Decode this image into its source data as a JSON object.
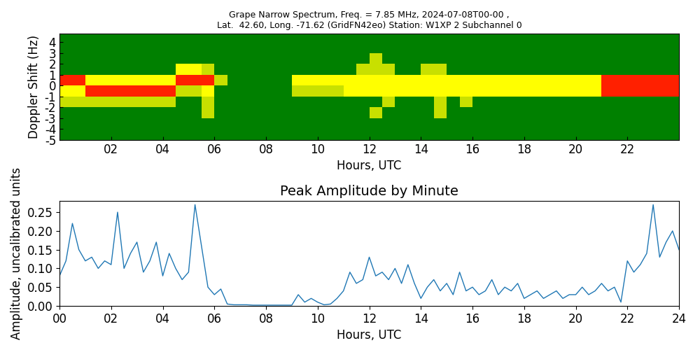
{
  "chart_data": [
    {
      "type": "heatmap",
      "title": "Grape Narrow Spectrum, Freq. = 7.85 MHz, 2024-07-08T00-00 ,\nLat.  42.60, Long. -71.62 (GridFN42eo) Station: W1XP 2 Subchannel 0",
      "x_label": "Hours, UTC",
      "y_label": "Doppler Shift (Hz)",
      "x_edges": [
        0,
        0.5,
        1,
        1.5,
        2,
        2.5,
        3,
        3.5,
        4,
        4.5,
        5,
        5.5,
        6,
        6.5,
        7,
        7.5,
        8,
        8.5,
        9,
        9.5,
        10,
        10.5,
        11,
        11.5,
        12,
        12.5,
        13,
        13.5,
        14,
        14.5,
        15,
        15.5,
        16,
        16.5,
        17,
        17.5,
        18,
        18.5,
        19,
        19.5,
        20,
        20.5,
        21,
        21.5,
        22,
        22.5,
        23,
        23.5,
        24
      ],
      "y_edges": [
        -5,
        -4,
        -3,
        -2,
        -1,
        0,
        1,
        2,
        3,
        4,
        5
      ],
      "cells": [
        [
          0,
          0,
          0,
          0,
          0,
          0,
          0,
          0,
          0,
          0,
          0,
          0,
          0,
          0,
          0,
          0,
          0,
          0,
          0,
          0,
          0,
          0,
          0,
          0,
          0,
          0,
          0,
          0,
          0,
          0,
          0,
          0,
          0,
          0,
          0,
          0,
          0,
          0,
          0,
          0,
          0,
          0,
          0,
          0,
          0,
          0,
          0,
          0
        ],
        [
          0,
          0,
          0,
          0,
          0,
          0,
          0,
          0,
          0,
          0,
          0,
          0,
          0,
          0,
          0,
          0,
          0,
          0,
          0,
          0,
          0,
          0,
          0,
          0,
          0,
          0,
          0,
          0,
          0,
          0,
          0,
          0,
          0,
          0,
          0,
          0,
          0,
          0,
          0,
          0,
          0,
          0,
          0,
          0,
          0,
          0,
          0,
          0
        ],
        [
          0,
          0,
          0,
          0,
          0,
          0,
          0,
          0,
          0,
          0,
          0,
          1,
          0,
          0,
          0,
          0,
          0,
          0,
          0,
          0,
          0,
          0,
          0,
          0,
          1,
          0,
          0,
          0,
          0,
          1,
          0,
          0,
          0,
          0,
          0,
          0,
          0,
          0,
          0,
          0,
          0,
          0,
          0,
          0,
          0,
          0,
          0,
          0
        ],
        [
          1,
          1,
          1,
          1,
          1,
          1,
          1,
          1,
          1,
          0,
          0,
          1,
          0,
          0,
          0,
          0,
          0,
          0,
          0,
          0,
          0,
          0,
          0,
          0,
          0,
          1,
          0,
          0,
          0,
          1,
          0,
          1,
          0,
          0,
          0,
          0,
          0,
          0,
          0,
          0,
          0,
          0,
          0,
          0,
          0,
          0,
          0,
          0
        ],
        [
          2,
          2,
          3,
          3,
          3,
          3,
          3,
          3,
          3,
          1,
          1,
          2,
          0,
          0,
          0,
          0,
          0,
          0,
          1,
          1,
          1,
          1,
          2,
          2,
          2,
          2,
          2,
          2,
          2,
          2,
          2,
          2,
          2,
          2,
          2,
          2,
          2,
          2,
          2,
          2,
          2,
          2,
          3,
          3,
          3,
          3,
          3,
          3
        ],
        [
          3,
          3,
          2,
          2,
          2,
          2,
          2,
          2,
          2,
          3,
          3,
          3,
          1,
          0,
          0,
          0,
          0,
          0,
          2,
          2,
          2,
          2,
          2,
          2,
          2,
          2,
          2,
          2,
          2,
          2,
          2,
          2,
          2,
          2,
          2,
          2,
          2,
          2,
          2,
          2,
          2,
          2,
          3,
          3,
          3,
          3,
          3,
          3
        ],
        [
          0,
          0,
          0,
          0,
          0,
          0,
          0,
          0,
          0,
          2,
          2,
          1,
          0,
          0,
          0,
          0,
          0,
          0,
          0,
          0,
          0,
          0,
          0,
          1,
          1,
          1,
          0,
          0,
          1,
          1,
          0,
          0,
          0,
          0,
          0,
          0,
          0,
          0,
          0,
          0,
          0,
          0,
          0,
          0,
          0,
          0,
          0,
          0
        ],
        [
          0,
          0,
          0,
          0,
          0,
          0,
          0,
          0,
          0,
          0,
          0,
          0,
          0,
          0,
          0,
          0,
          0,
          0,
          0,
          0,
          0,
          0,
          0,
          0,
          1,
          0,
          0,
          0,
          0,
          0,
          0,
          0,
          0,
          0,
          0,
          0,
          0,
          0,
          0,
          0,
          0,
          0,
          0,
          0,
          0,
          0,
          0,
          0
        ],
        [
          0,
          0,
          0,
          0,
          0,
          0,
          0,
          0,
          0,
          0,
          0,
          0,
          0,
          0,
          0,
          0,
          0,
          0,
          0,
          0,
          0,
          0,
          0,
          0,
          0,
          0,
          0,
          0,
          0,
          0,
          0,
          0,
          0,
          0,
          0,
          0,
          0,
          0,
          0,
          0,
          0,
          0,
          0,
          0,
          0,
          0,
          0,
          0
        ],
        [
          0,
          0,
          0,
          0,
          0,
          0,
          0,
          0,
          0,
          0,
          0,
          0,
          0,
          0,
          0,
          0,
          0,
          0,
          0,
          0,
          0,
          0,
          0,
          0,
          0,
          0,
          0,
          0,
          0,
          0,
          0,
          0,
          0,
          0,
          0,
          0,
          0,
          0,
          0,
          0,
          0,
          0,
          0,
          0,
          0,
          0,
          0,
          0
        ]
      ],
      "xlim": [
        0,
        24
      ],
      "xticks": [
        {
          "value": 2,
          "label": "02"
        },
        {
          "value": 4,
          "label": "04"
        },
        {
          "value": 6,
          "label": "06"
        },
        {
          "value": 8,
          "label": "08"
        },
        10,
        12,
        14,
        16,
        18,
        20,
        22
      ],
      "ylim": [
        -5,
        4.8
      ],
      "yticks": [
        -5,
        -4,
        -3,
        -2,
        -1,
        0,
        1,
        2,
        3,
        4
      ]
    },
    {
      "type": "line",
      "title": "Peak Amplitude by Minute",
      "x_label": "Hours, UTC",
      "y_label": "Amplitude, uncalibrated units",
      "color": "#1f77b4",
      "x": [
        0,
        0.25,
        0.5,
        0.75,
        1,
        1.25,
        1.5,
        1.75,
        2,
        2.25,
        2.5,
        2.75,
        3,
        3.25,
        3.5,
        3.75,
        4,
        4.25,
        4.5,
        4.75,
        5,
        5.25,
        5.5,
        5.75,
        6,
        6.25,
        6.5,
        6.75,
        7,
        7.25,
        7.5,
        7.75,
        8,
        8.25,
        8.5,
        8.75,
        9,
        9.25,
        9.5,
        9.75,
        10,
        10.25,
        10.5,
        10.75,
        11,
        11.25,
        11.5,
        11.75,
        12,
        12.25,
        12.5,
        12.75,
        13,
        13.25,
        13.5,
        13.75,
        14,
        14.25,
        14.5,
        14.75,
        15,
        15.25,
        15.5,
        15.75,
        16,
        16.25,
        16.5,
        16.75,
        17,
        17.25,
        17.5,
        17.75,
        18,
        18.25,
        18.5,
        18.75,
        19,
        19.25,
        19.5,
        19.75,
        20,
        20.25,
        20.5,
        20.75,
        21,
        21.25,
        21.5,
        21.75,
        22,
        22.25,
        22.5,
        22.75,
        23,
        23.25,
        23.5,
        23.75,
        24
      ],
      "values": [
        0.08,
        0.12,
        0.22,
        0.15,
        0.12,
        0.13,
        0.1,
        0.12,
        0.11,
        0.25,
        0.1,
        0.14,
        0.17,
        0.09,
        0.12,
        0.17,
        0.08,
        0.14,
        0.1,
        0.07,
        0.09,
        0.27,
        0.16,
        0.05,
        0.03,
        0.045,
        0.005,
        0.003,
        0.003,
        0.003,
        0.002,
        0.002,
        0.002,
        0.002,
        0.002,
        0.002,
        0.002,
        0.03,
        0.01,
        0.02,
        0.01,
        0.003,
        0.005,
        0.02,
        0.04,
        0.09,
        0.06,
        0.07,
        0.13,
        0.08,
        0.09,
        0.07,
        0.1,
        0.06,
        0.11,
        0.06,
        0.02,
        0.05,
        0.07,
        0.04,
        0.06,
        0.03,
        0.09,
        0.04,
        0.05,
        0.03,
        0.04,
        0.07,
        0.03,
        0.05,
        0.04,
        0.06,
        0.02,
        0.03,
        0.04,
        0.02,
        0.03,
        0.04,
        0.02,
        0.03,
        0.03,
        0.05,
        0.03,
        0.04,
        0.06,
        0.04,
        0.05,
        0.01,
        0.12,
        0.09,
        0.11,
        0.14,
        0.27,
        0.13,
        0.17,
        0.2,
        0.15
      ],
      "xlim": [
        0,
        24
      ],
      "xticks": [
        {
          "value": 0,
          "label": "00"
        },
        {
          "value": 2,
          "label": "02"
        },
        {
          "value": 4,
          "label": "04"
        },
        {
          "value": 6,
          "label": "06"
        },
        {
          "value": 8,
          "label": "08"
        },
        10,
        12,
        14,
        16,
        18,
        20,
        22,
        24
      ],
      "ylim": [
        0,
        0.28
      ],
      "yticks": [
        {
          "value": 0,
          "label": "0.00"
        },
        {
          "value": 0.05,
          "label": "0.05"
        },
        {
          "value": 0.1,
          "label": "0.10"
        },
        {
          "value": 0.15,
          "label": "0.15"
        },
        {
          "value": 0.2,
          "label": "0.20"
        },
        {
          "value": 0.25,
          "label": "0.25"
        }
      ]
    }
  ]
}
